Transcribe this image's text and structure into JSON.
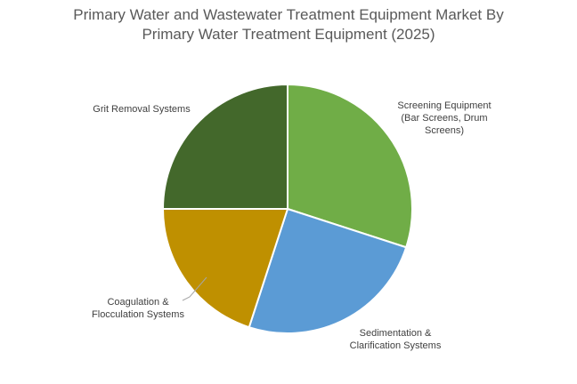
{
  "chart_data": {
    "type": "pie",
    "title_lines": [
      "Primary Water and Wastewater Treatment Equipment Market By",
      "Primary Water Treatment Equipment (2025)"
    ],
    "slices": [
      {
        "name": "Screening Equipment (Bar Screens, Drum Screens)",
        "label_lines": [
          "Screening Equipment",
          "(Bar Screens, Drum",
          "Screens)"
        ],
        "value": 30,
        "color": "#70ad47"
      },
      {
        "name": "Sedimentation & Clarification Systems",
        "label_lines": [
          "Sedimentation &",
          "Clarification Systems"
        ],
        "value": 25,
        "color": "#5b9bd5"
      },
      {
        "name": "Coagulation & Flocculation Systems",
        "label_lines": [
          "Coagulation &",
          "Flocculation Systems"
        ],
        "value": 20,
        "color": "#bf9000"
      },
      {
        "name": "Grit Removal Systems",
        "label_lines": [
          "Grit Removal Systems"
        ],
        "value": 25,
        "color": "#43682b"
      }
    ],
    "start": "12 o'clock",
    "direction": "clockwise",
    "slice_border_color": "#ffffff",
    "data_labels": "outside"
  }
}
